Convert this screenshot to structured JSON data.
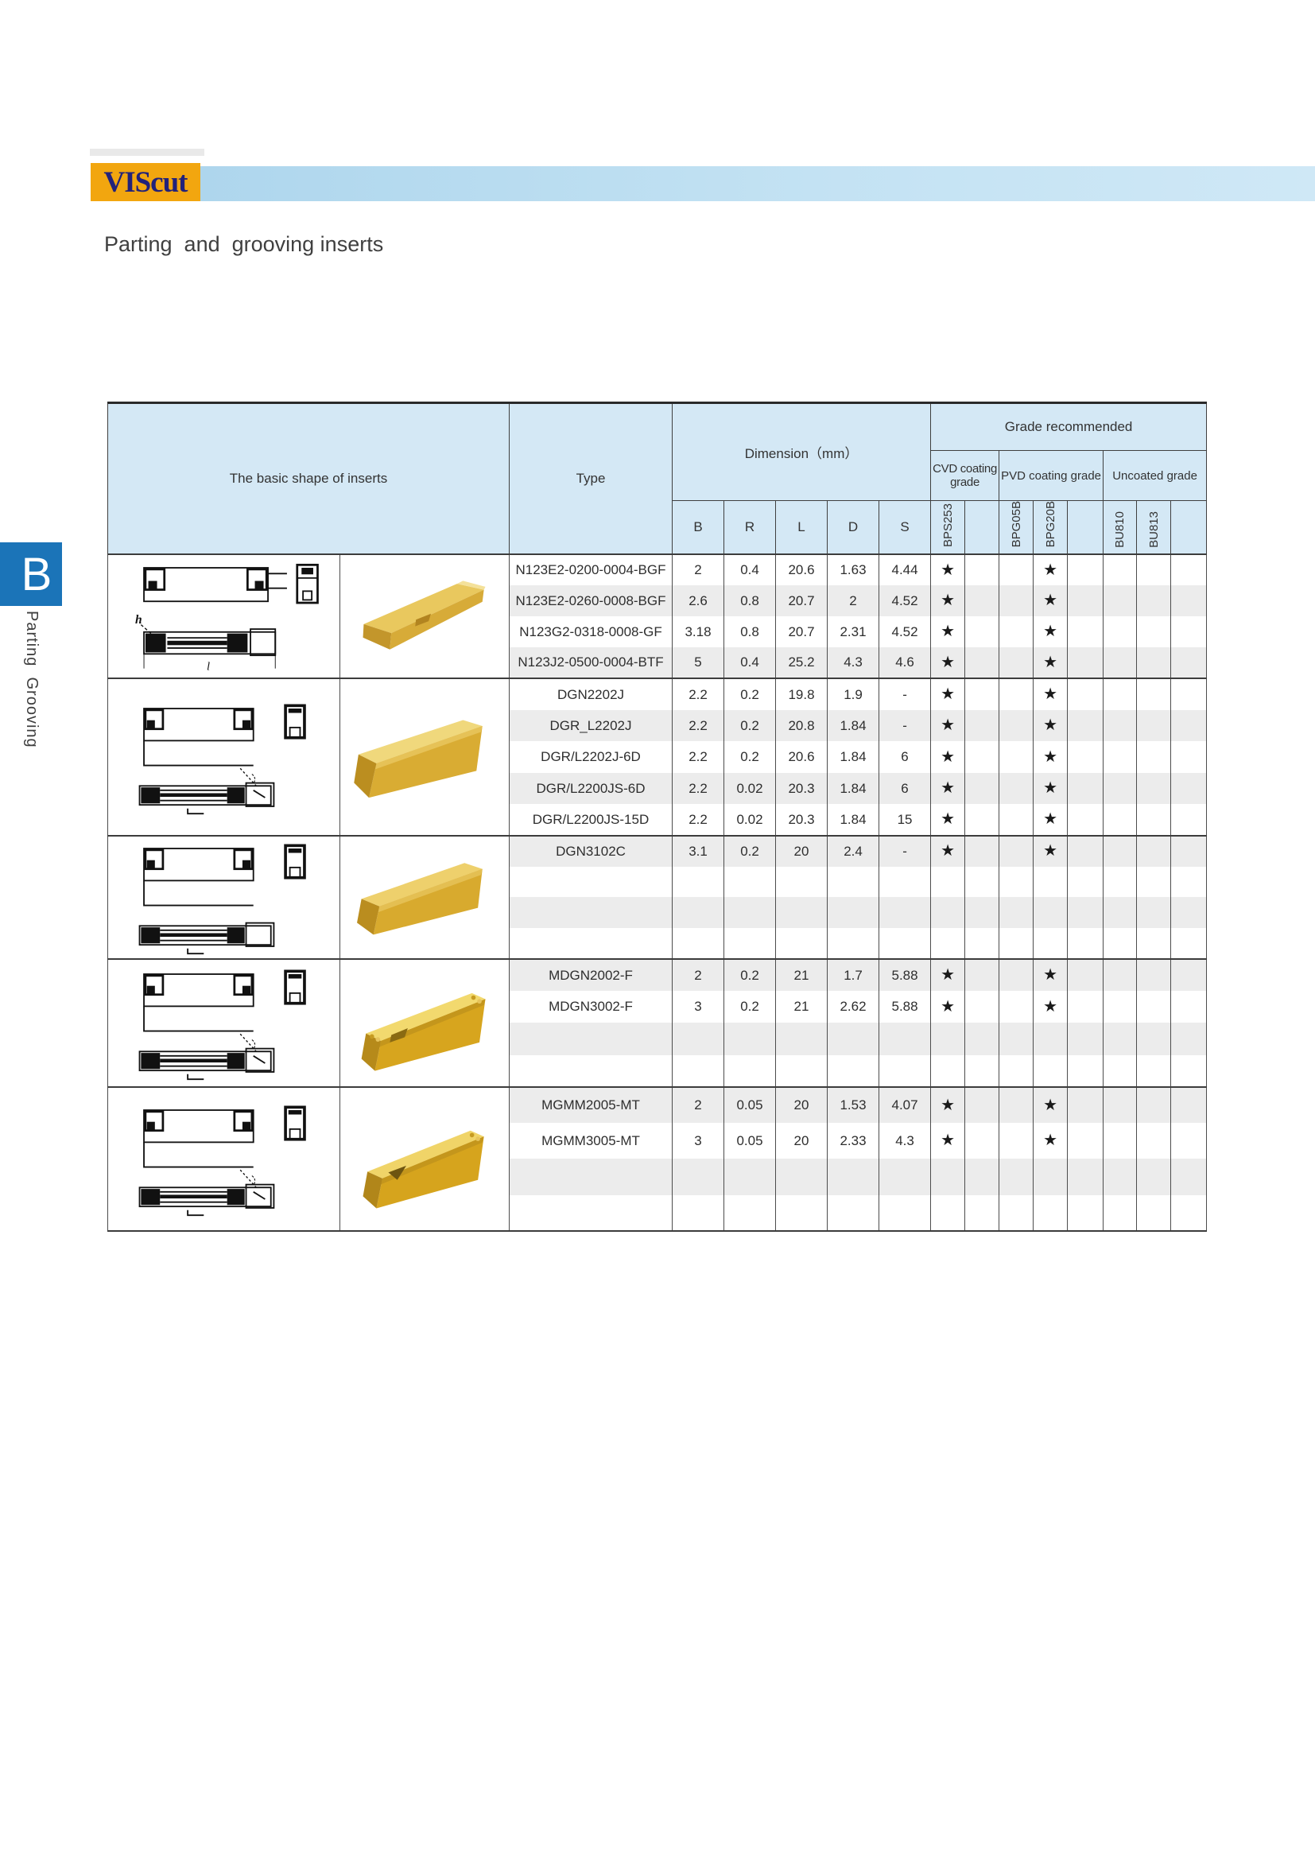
{
  "logo": {
    "text": "VIScut"
  },
  "page": {
    "subtitle": "Parting  and  grooving inserts"
  },
  "sidebar": {
    "letter": "B",
    "label": "Parting  Grooving"
  },
  "table": {
    "header": {
      "shape": "The basic shape of inserts",
      "type": "Type",
      "dimension": "Dimension（mm）",
      "dims": [
        "B",
        "R",
        "L",
        "D",
        "S"
      ],
      "grade": "Grade recommended",
      "grade_groups": [
        {
          "label": "CVD coating grade",
          "cols": [
            "BPS253",
            ""
          ]
        },
        {
          "label": "PVD coating grade",
          "cols": [
            "BPG05B",
            "BPG20B",
            ""
          ]
        },
        {
          "label": "Uncoated grade",
          "cols": [
            "BU810",
            "BU813",
            ""
          ]
        }
      ]
    },
    "star_symbol": "★",
    "accent_colors": {
      "header_blue": "#d4e8f5",
      "logo_orange": "#f2a60f",
      "logo_navy": "#22227a",
      "tab_blue": "#1b74b8",
      "stripe_gray": "#ececec",
      "insert_gold": "#d9ac33"
    },
    "groups": [
      {
        "rows": [
          {
            "type": "N123E2-0200-0004-BGF",
            "B": "2",
            "R": "0.4",
            "L": "20.6",
            "D": "1.63",
            "S": "4.44",
            "stars": [
              "BPS253",
              "BPG20B"
            ]
          },
          {
            "type": "N123E2-0260-0008-BGF",
            "B": "2.6",
            "R": "0.8",
            "L": "20.7",
            "D": "2",
            "S": "4.52",
            "stars": [
              "BPS253",
              "BPG20B"
            ]
          },
          {
            "type": "N123G2-0318-0008-GF",
            "B": "3.18",
            "R": "0.8",
            "L": "20.7",
            "D": "2.31",
            "S": "4.52",
            "stars": [
              "BPS253",
              "BPG20B"
            ]
          },
          {
            "type": "N123J2-0500-0004-BTF",
            "B": "5",
            "R": "0.4",
            "L": "25.2",
            "D": "4.3",
            "S": "4.6",
            "stars": [
              "BPS253",
              "BPG20B"
            ]
          }
        ]
      },
      {
        "rows": [
          {
            "type": "DGN2202J",
            "B": "2.2",
            "R": "0.2",
            "L": "19.8",
            "D": "1.9",
            "S": "-",
            "stars": [
              "BPS253",
              "BPG20B"
            ]
          },
          {
            "type": "DGR_L2202J",
            "B": "2.2",
            "R": "0.2",
            "L": "20.8",
            "D": "1.84",
            "S": "-",
            "stars": [
              "BPS253",
              "BPG20B"
            ]
          },
          {
            "type": "DGR/L2202J-6D",
            "B": "2.2",
            "R": "0.2",
            "L": "20.6",
            "D": "1.84",
            "S": "6",
            "stars": [
              "BPS253",
              "BPG20B"
            ]
          },
          {
            "type": "DGR/L2200JS-6D",
            "B": "2.2",
            "R": "0.02",
            "L": "20.3",
            "D": "1.84",
            "S": "6",
            "stars": [
              "BPS253",
              "BPG20B"
            ]
          },
          {
            "type": "DGR/L2200JS-15D",
            "B": "2.2",
            "R": "0.02",
            "L": "20.3",
            "D": "1.84",
            "S": "15",
            "stars": [
              "BPS253",
              "BPG20B"
            ]
          }
        ]
      },
      {
        "rows": [
          {
            "type": "DGN3102C",
            "B": "3.1",
            "R": "0.2",
            "L": "20",
            "D": "2.4",
            "S": "-",
            "stars": [
              "BPS253",
              "BPG20B"
            ]
          },
          {
            "type": "",
            "B": "",
            "R": "",
            "L": "",
            "D": "",
            "S": "",
            "stars": []
          },
          {
            "type": "",
            "B": "",
            "R": "",
            "L": "",
            "D": "",
            "S": "",
            "stars": []
          },
          {
            "type": "",
            "B": "",
            "R": "",
            "L": "",
            "D": "",
            "S": "",
            "stars": []
          }
        ]
      },
      {
        "rows": [
          {
            "type": "MDGN2002-F",
            "B": "2",
            "R": "0.2",
            "L": "21",
            "D": "1.7",
            "S": "5.88",
            "stars": [
              "BPS253",
              "BPG20B"
            ]
          },
          {
            "type": "MDGN3002-F",
            "B": "3",
            "R": "0.2",
            "L": "21",
            "D": "2.62",
            "S": "5.88",
            "stars": [
              "BPS253",
              "BPG20B"
            ]
          },
          {
            "type": "",
            "B": "",
            "R": "",
            "L": "",
            "D": "",
            "S": "",
            "stars": []
          },
          {
            "type": "",
            "B": "",
            "R": "",
            "L": "",
            "D": "",
            "S": "",
            "stars": []
          }
        ]
      },
      {
        "rows": [
          {
            "type": "MGMM2005-MT",
            "B": "2",
            "R": "0.05",
            "L": "20",
            "D": "1.53",
            "S": "4.07",
            "stars": [
              "BPS253",
              "BPG20B"
            ]
          },
          {
            "type": "MGMM3005-MT",
            "B": "3",
            "R": "0.05",
            "L": "20",
            "D": "2.33",
            "S": "4.3",
            "stars": [
              "BPS253",
              "BPG20B"
            ]
          },
          {
            "type": "",
            "B": "",
            "R": "",
            "L": "",
            "D": "",
            "S": "",
            "stars": []
          },
          {
            "type": "",
            "B": "",
            "R": "",
            "L": "",
            "D": "",
            "S": "",
            "stars": []
          }
        ]
      }
    ]
  }
}
